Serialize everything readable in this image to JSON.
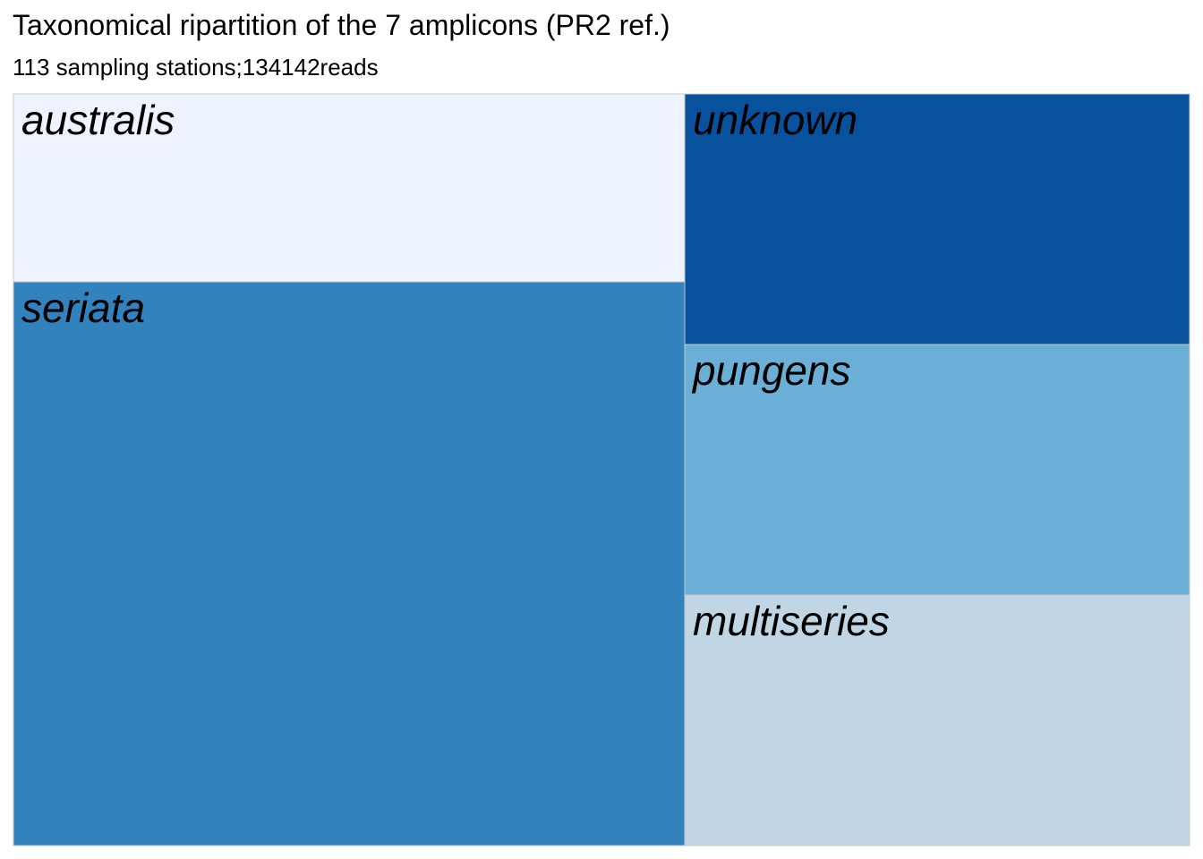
{
  "chart_data": {
    "type": "treemap",
    "title": "Taxonomical ripartition of the 7 amplicons (PR2 ref.)",
    "subtitle": "113 sampling stations;134142reads",
    "tiles": [
      {
        "label": "australis",
        "color": "#eff3ff"
      },
      {
        "label": "seriata",
        "color": "#3182bd"
      },
      {
        "label": "unknown",
        "color": "#08519c"
      },
      {
        "label": "pungens",
        "color": "#6baed6"
      },
      {
        "label": "multiseries",
        "color": "#c0d6e5"
      }
    ]
  }
}
